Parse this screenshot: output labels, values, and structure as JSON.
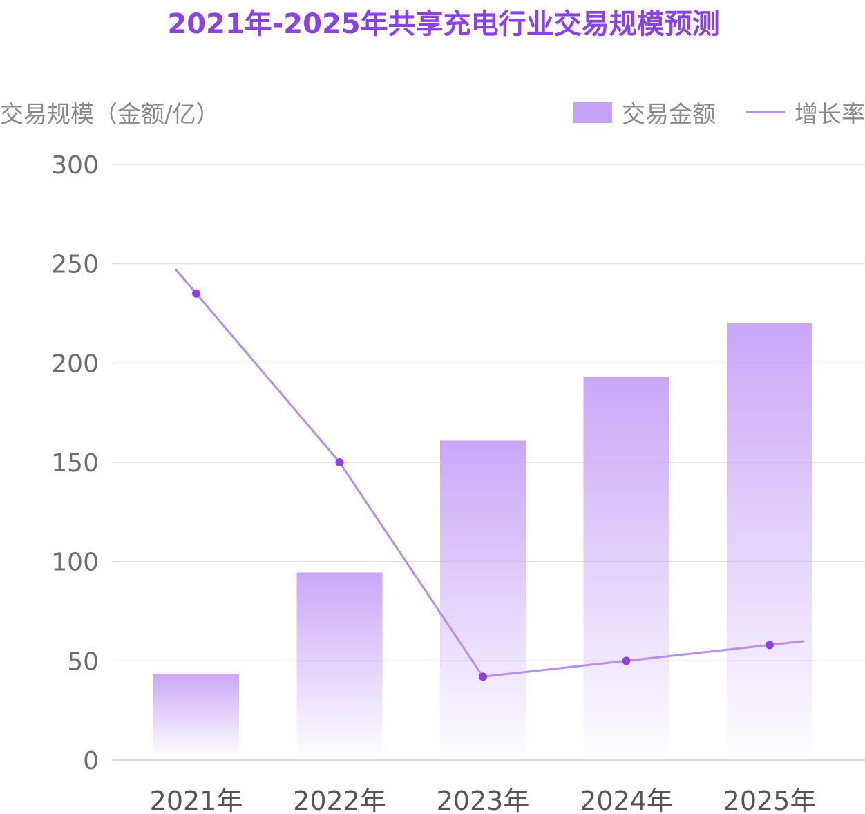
{
  "title": "2021年-2025年共享充电行业交易规模预测",
  "y_axis_title": "交易规模（金额/亿）",
  "legend": {
    "bar_label": "交易金额",
    "line_label": "增长率"
  },
  "colors": {
    "title": "#8a3ff0",
    "bar_top": "#c6a3f7",
    "line": "#b98cf5",
    "point": "#8a3ff0",
    "grid": "#e2e2e2"
  },
  "chart_data": {
    "type": "bar",
    "categories": [
      "2021年",
      "2022年",
      "2023年",
      "2024年",
      "2025年"
    ],
    "series": [
      {
        "name": "交易金额",
        "type": "bar",
        "values": [
          43.5,
          94.5,
          161,
          193,
          220
        ]
      },
      {
        "name": "增长率",
        "type": "line",
        "values": [
          235,
          150,
          42,
          50,
          58
        ]
      }
    ],
    "yticks": [
      0,
      50,
      100,
      150,
      200,
      250,
      300
    ],
    "ylim": [
      0,
      300
    ],
    "grid": true,
    "legend_position": "top-right"
  }
}
